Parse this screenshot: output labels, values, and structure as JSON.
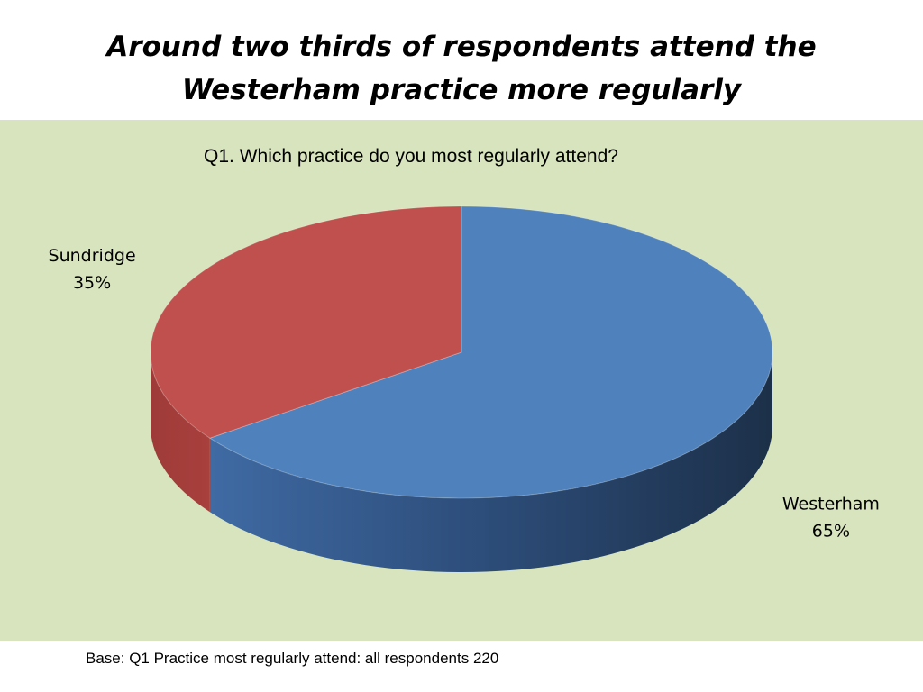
{
  "slide": {
    "title_line1": "Around two thirds of respondents attend the",
    "title_line2": "Westerham practice more regularly",
    "footnote": "Base: Q1 Practice most regularly attend: all respondents 220"
  },
  "colors": {
    "background_panel": "#d7e4bd",
    "Westerham": "#4f81bd",
    "Sundridge": "#c0504d"
  },
  "chart_data": {
    "type": "pie",
    "title": "Q1. Which practice do you most regularly attend?",
    "style": "3d",
    "series": [
      {
        "name": "Westerham",
        "value": 65,
        "label_value": "65%"
      },
      {
        "name": "Sundridge",
        "value": 35,
        "label_value": "35%"
      }
    ]
  }
}
